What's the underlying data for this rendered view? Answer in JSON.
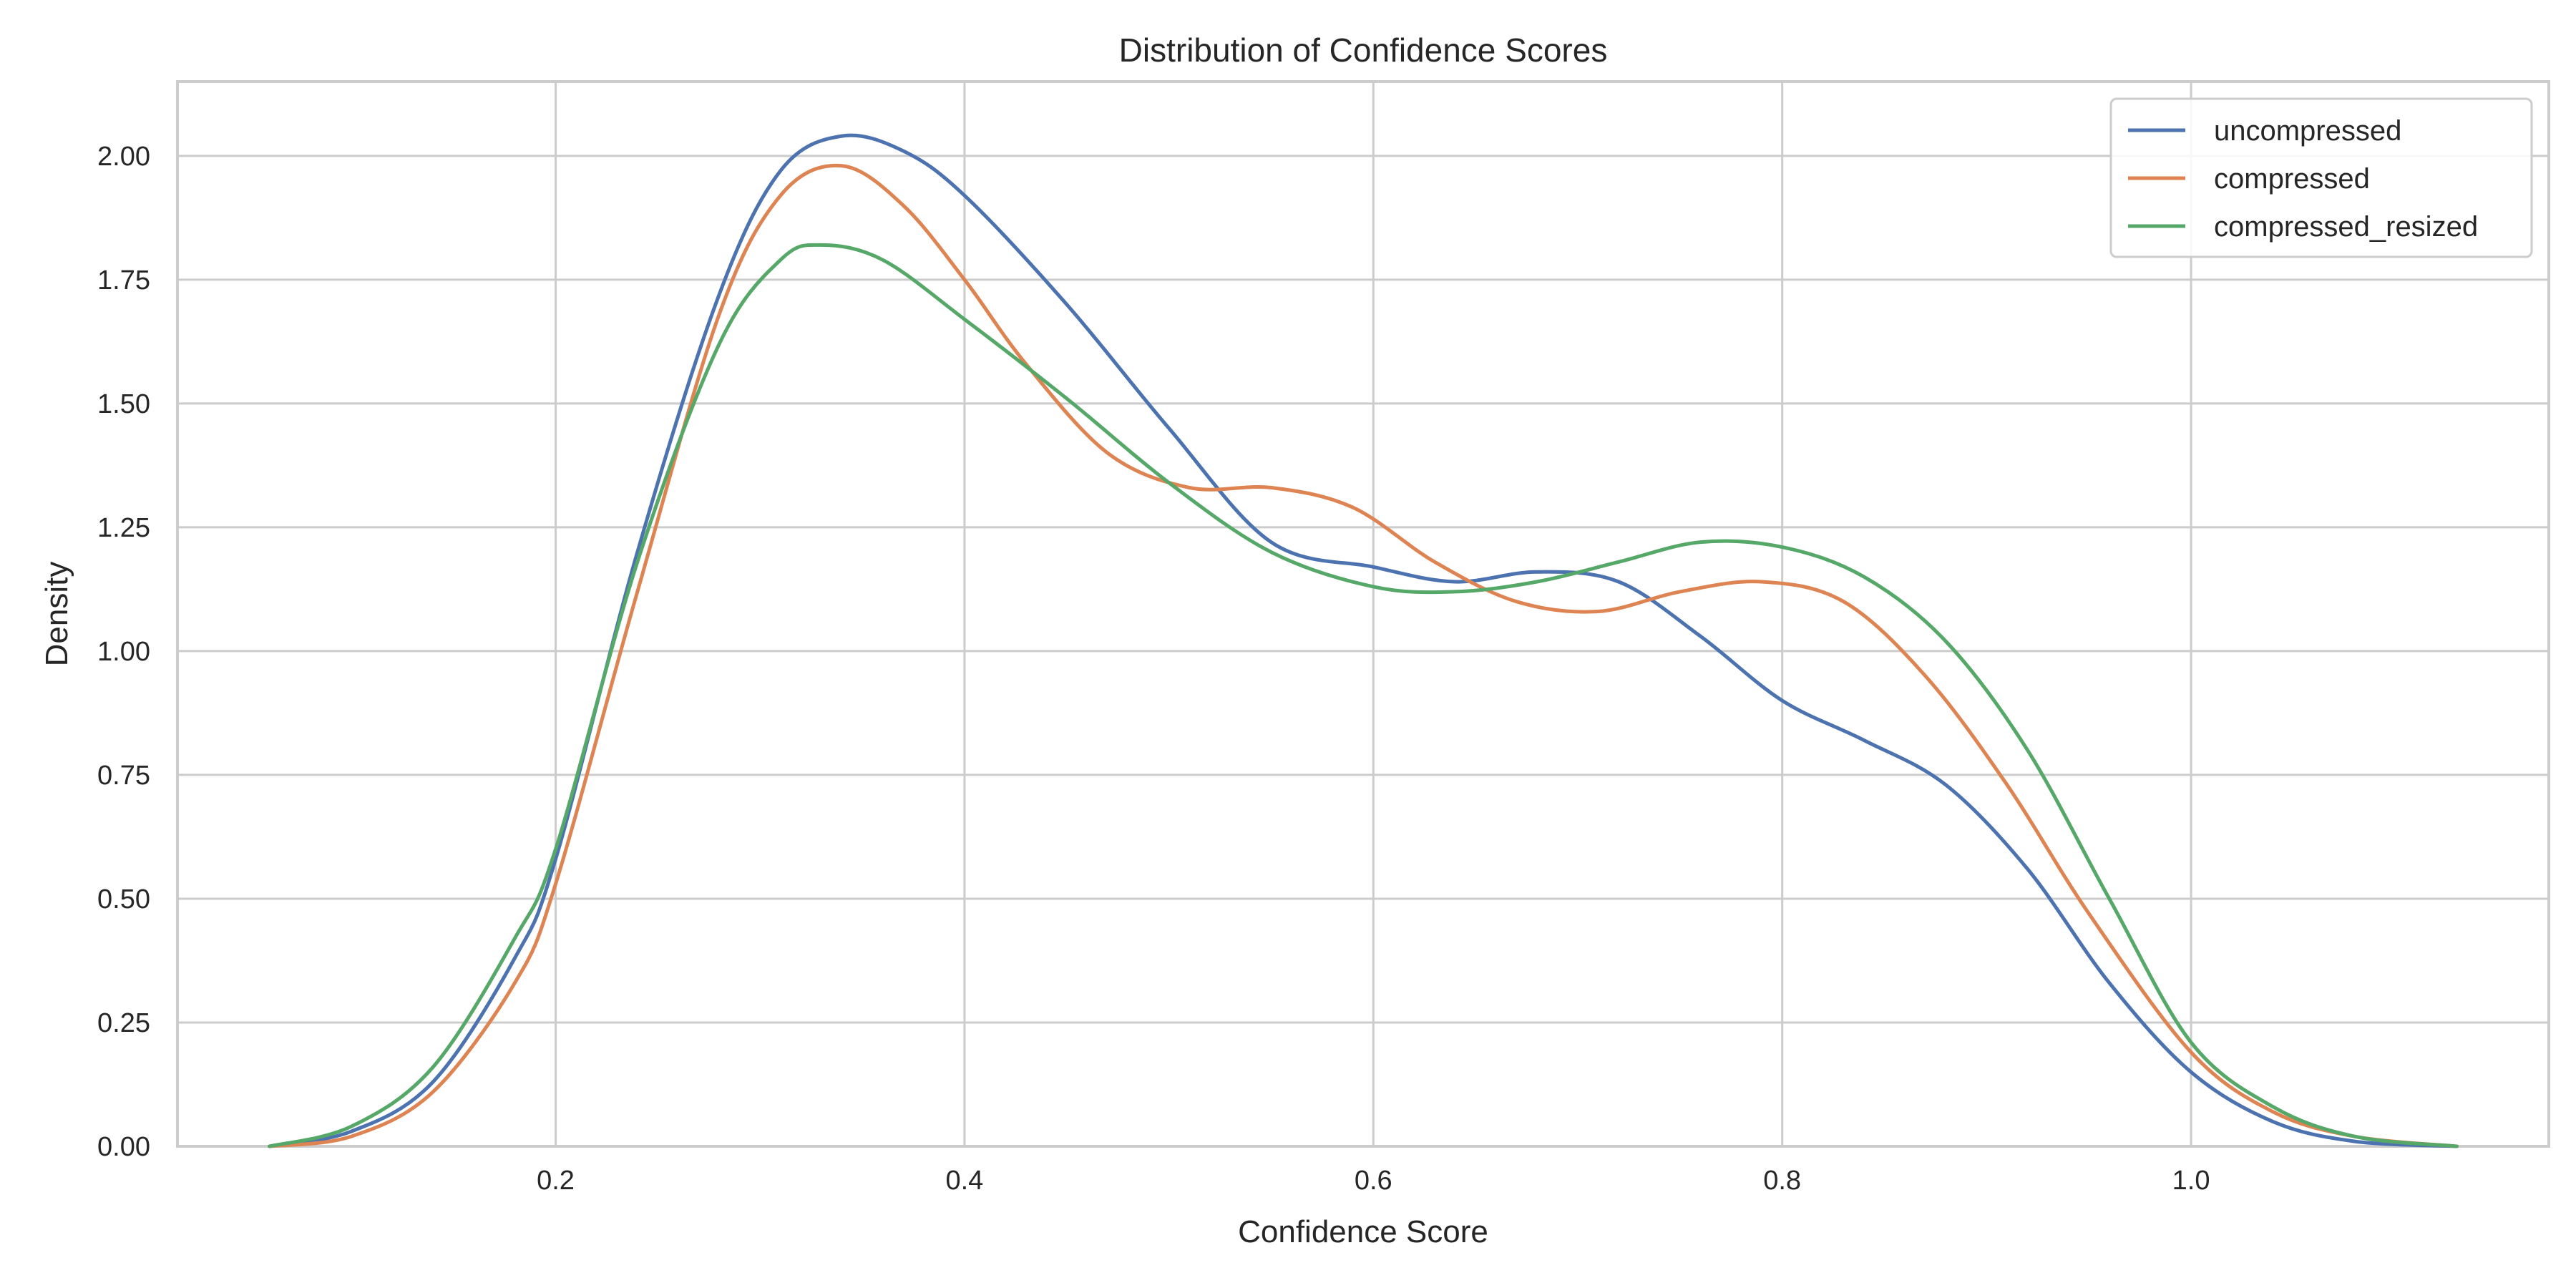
{
  "chart_data": {
    "type": "line",
    "title": "Distribution of Confidence Scores",
    "xlabel": "Confidence Score",
    "ylabel": "Density",
    "xlim": [
      0.015,
      1.175
    ],
    "ylim": [
      0,
      2.15
    ],
    "x_ticks": [
      0.2,
      0.4,
      0.6,
      0.8,
      1.0
    ],
    "x_tick_labels": [
      "0.2",
      "0.4",
      "0.6",
      "0.8",
      "1.0"
    ],
    "y_ticks": [
      0,
      0.25,
      0.5,
      0.75,
      1.0,
      1.25,
      1.5,
      1.75,
      2.0
    ],
    "y_tick_labels": [
      "0.00",
      "0.25",
      "0.50",
      "0.75",
      "1.00",
      "1.25",
      "1.50",
      "1.75",
      "2.00"
    ],
    "grid": true,
    "legend_position": "top-right",
    "series": [
      {
        "name": "uncompressed",
        "color": "#4c72b0",
        "x": [
          0.06,
          0.1,
          0.14,
          0.18,
          0.2,
          0.24,
          0.28,
          0.31,
          0.34,
          0.37,
          0.4,
          0.45,
          0.5,
          0.55,
          0.6,
          0.64,
          0.68,
          0.72,
          0.76,
          0.8,
          0.84,
          0.88,
          0.92,
          0.96,
          1.0,
          1.04,
          1.08,
          1.13
        ],
        "values": [
          0.0,
          0.03,
          0.13,
          0.38,
          0.58,
          1.2,
          1.72,
          1.97,
          2.04,
          2.01,
          1.92,
          1.7,
          1.45,
          1.22,
          1.17,
          1.14,
          1.16,
          1.14,
          1.03,
          0.9,
          0.82,
          0.73,
          0.56,
          0.33,
          0.15,
          0.05,
          0.01,
          0.0
        ]
      },
      {
        "name": "compressed",
        "color": "#dd8452",
        "x": [
          0.06,
          0.1,
          0.14,
          0.18,
          0.2,
          0.24,
          0.28,
          0.31,
          0.34,
          0.37,
          0.4,
          0.43,
          0.47,
          0.51,
          0.55,
          0.59,
          0.63,
          0.67,
          0.71,
          0.75,
          0.79,
          0.83,
          0.87,
          0.91,
          0.95,
          1.0,
          1.04,
          1.08,
          1.13
        ],
        "values": [
          0.0,
          0.02,
          0.11,
          0.33,
          0.53,
          1.12,
          1.68,
          1.92,
          1.98,
          1.9,
          1.75,
          1.58,
          1.4,
          1.33,
          1.33,
          1.29,
          1.18,
          1.1,
          1.08,
          1.12,
          1.14,
          1.1,
          0.95,
          0.73,
          0.47,
          0.19,
          0.07,
          0.02,
          0.0
        ]
      },
      {
        "name": "compressed_resized",
        "color": "#55a868",
        "x": [
          0.06,
          0.1,
          0.14,
          0.18,
          0.2,
          0.24,
          0.28,
          0.31,
          0.33,
          0.36,
          0.4,
          0.45,
          0.5,
          0.55,
          0.6,
          0.64,
          0.68,
          0.72,
          0.76,
          0.8,
          0.84,
          0.88,
          0.92,
          0.96,
          1.0,
          1.04,
          1.08,
          1.13
        ],
        "values": [
          0.0,
          0.04,
          0.16,
          0.42,
          0.6,
          1.18,
          1.62,
          1.79,
          1.82,
          1.79,
          1.67,
          1.51,
          1.34,
          1.2,
          1.13,
          1.12,
          1.14,
          1.18,
          1.22,
          1.21,
          1.15,
          1.02,
          0.8,
          0.5,
          0.21,
          0.08,
          0.02,
          0.0
        ]
      }
    ]
  }
}
